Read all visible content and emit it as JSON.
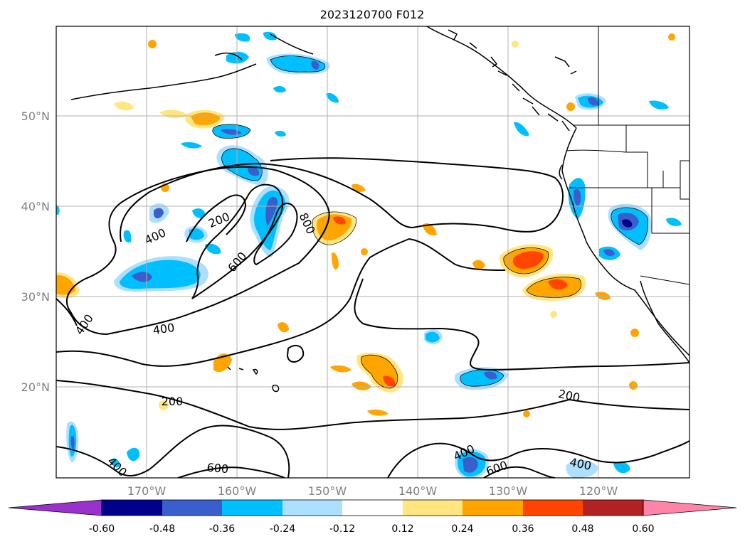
{
  "map": {
    "title": "2023120700 F012",
    "lat_ticks": [
      "50°N",
      "40°N",
      "30°N",
      "20°N"
    ],
    "lon_ticks": [
      "170°W",
      "160°W",
      "150°W",
      "140°W",
      "130°W",
      "120°W"
    ],
    "contour_labels": [
      "400",
      "200",
      "800",
      "600",
      "400",
      "400",
      "200",
      "200",
      "400",
      "600",
      "400",
      "600",
      "400"
    ],
    "contour_color": "#000000",
    "grid": true,
    "coastlines": true
  },
  "colorbar": {
    "extend": "both",
    "ticks": [
      "-0.60",
      "-0.48",
      "-0.36",
      "-0.24",
      "-0.12",
      "0.12",
      "0.24",
      "0.36",
      "0.48",
      "0.60"
    ],
    "colors": [
      "#9932CC",
      "#00008B",
      "#3A5FCD",
      "#00BFFF",
      "#ADDFFF",
      "#FFFFFF",
      "#FFE680",
      "#FFA500",
      "#FF4500",
      "#B22222",
      "#FF85A8"
    ]
  }
}
